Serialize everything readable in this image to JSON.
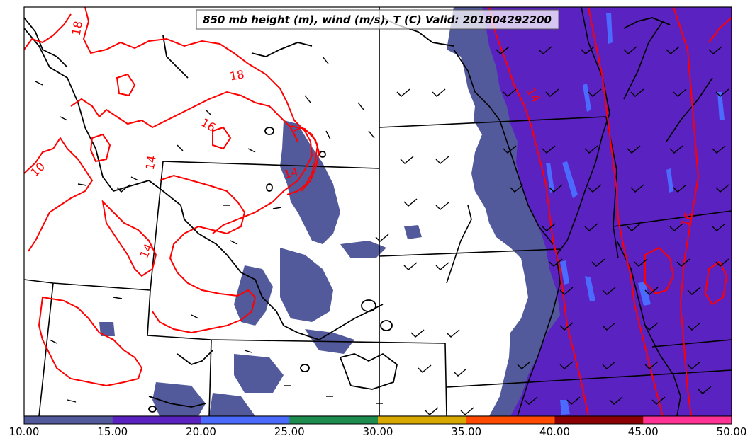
{
  "title": "850 mb height (m), wind (m/s), T (C) Valid: 201804292200",
  "contour_labels": [
    "18",
    "18",
    "16",
    "14",
    "14",
    "10",
    "14",
    "14",
    "16"
  ],
  "colorbar": {
    "ticks": [
      "10.00",
      "15.00",
      "20.00",
      "25.00",
      "30.00",
      "35.00",
      "40.00",
      "45.00",
      "50.00"
    ],
    "colors": [
      "#525a9b",
      "#5b22c2",
      "#4b6bff",
      "#1e8c4e",
      "#d9a800",
      "#ff4a00",
      "#8b0000",
      "#ff3394"
    ]
  },
  "colors": {
    "temperature_contour": "#ff0000",
    "height_contour": "#000000",
    "wind_barb": "#000000"
  }
}
